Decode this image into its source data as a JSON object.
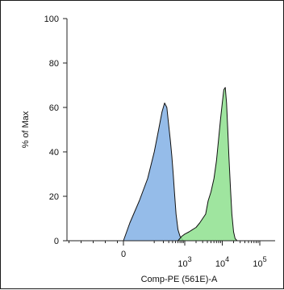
{
  "chart_data": {
    "type": "area",
    "xlabel": "Comp-PE (561E)-A",
    "ylabel": "% of Max",
    "x_scale": "biexponential",
    "x_tick_labels": [
      {
        "base": "0",
        "exp": "",
        "value": 0
      },
      {
        "base": "10",
        "exp": "3",
        "value": 1000
      },
      {
        "base": "10",
        "exp": "4",
        "value": 10000
      },
      {
        "base": "10",
        "exp": "5",
        "value": 100000
      }
    ],
    "y_tick_labels": [
      "0",
      "20",
      "40",
      "60",
      "80",
      "100"
    ],
    "y_ticks": [
      0,
      20,
      40,
      60,
      80,
      100
    ],
    "ylim": [
      0,
      100
    ],
    "grid": false,
    "series": [
      {
        "color": "#8fb8e8",
        "x": [
          0,
          10,
          30,
          60,
          100,
          140,
          180,
          220,
          260,
          300,
          340,
          380,
          420,
          460,
          520,
          600,
          700,
          800,
          900,
          1000
        ],
        "values": [
          0,
          8,
          18,
          28,
          40,
          50,
          58,
          62,
          60,
          52,
          45,
          38,
          30,
          22,
          12,
          5,
          2,
          1,
          0,
          0
        ]
      },
      {
        "color": "#8ee08e",
        "x": [
          600,
          800,
          1000,
          1300,
          1600,
          2000,
          2500,
          3000,
          3600,
          4200,
          5000,
          6000,
          7000,
          8000,
          9000,
          10000,
          11000,
          12000,
          13000,
          14000,
          15000,
          16500,
          18000,
          20000,
          22000,
          25000
        ],
        "values": [
          0,
          2,
          3,
          4,
          5,
          6,
          8,
          10,
          12,
          18,
          22,
          28,
          36,
          46,
          55,
          62,
          68,
          69,
          62,
          50,
          38,
          24,
          12,
          4,
          1,
          0
        ]
      }
    ]
  }
}
